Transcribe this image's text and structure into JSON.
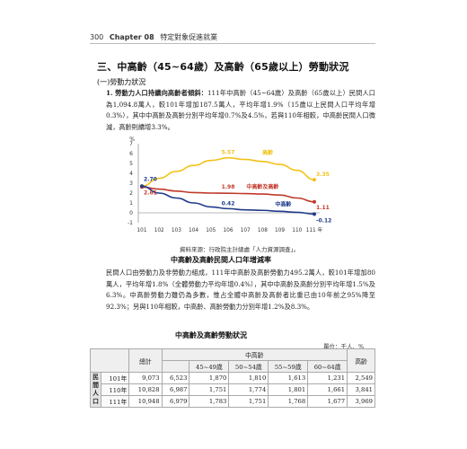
{
  "header": {
    "page_number": "300",
    "chapter": "Chapter 08",
    "chapter_title": "特定對象促進就業"
  },
  "section": {
    "title": "三、中高齡（45~64歲）及高齡（65歲以上）勞動狀況",
    "subsection": "(一)勞動力狀況",
    "item_label": "1. 勞動力人口持續向高齡者傾斜：",
    "item_body": "111年中高齡（45~64歲）及高齡（65歲以上）民間人口為1,094.8萬人，較101年增加187.5萬人，平均年增1.9%（15歲以上民間人口平均年增0.3%），其中中高齡及高齡分別平均年增0.7%及4.5%，若與110年相較，中高齡民間人口微減，高齡則續增3.3%。",
    "paragraph2": "民間人口由勞動力及非勞動力組成，111年中高齡及高齡勞動力495.2萬人，較101年增加80萬人，平均年增1.8%（全體勞動力平均年增0.4%），其中中高齡及高齡分別平均年增1.5%及6.3%。中高齡勞動力雖仍為多數，惟占全體中高齡及高齡者比重已由10年前之95%降至92.3%；另與110年相較，中高齡、高齡勞動力分別年增1.2%及8.3%。"
  },
  "chart_data": {
    "type": "line",
    "ylabel": "%",
    "ylim": [
      -1,
      7
    ],
    "yticks": [
      "-1",
      "0",
      "1",
      "2",
      "3",
      "4",
      "5",
      "6",
      "7"
    ],
    "categories": [
      "101",
      "102",
      "103",
      "104",
      "105",
      "106",
      "107",
      "108",
      "109",
      "110",
      "111 年"
    ],
    "series": [
      {
        "name": "高齡",
        "color": "#f2c21a",
        "values": [
          2.7,
          3.5,
          4.2,
          4.8,
          5.3,
          5.57,
          5.4,
          5.2,
          4.9,
          4.3,
          3.35
        ]
      },
      {
        "name": "中高齡及高齡",
        "color": "#c0392b",
        "values": [
          2.61,
          2.4,
          2.2,
          2.05,
          2.0,
          1.98,
          1.95,
          1.9,
          1.8,
          1.5,
          1.11
        ]
      },
      {
        "name": "中高齡",
        "color": "#1f3a8a",
        "values": [
          2.7,
          2.0,
          1.5,
          1.0,
          0.6,
          0.42,
          0.3,
          0.25,
          0.15,
          0.05,
          -0.12
        ]
      }
    ],
    "data_labels": [
      {
        "text": "2.70",
        "series": 2,
        "index": 0
      },
      {
        "text": "2.61",
        "series": 1,
        "index": 0
      },
      {
        "text": "5.57",
        "series": 0,
        "index": 5
      },
      {
        "text": "3.35",
        "series": 0,
        "index": 10
      },
      {
        "text": "1.98",
        "series": 1,
        "index": 5
      },
      {
        "text": "1.11",
        "series": 1,
        "index": 10
      },
      {
        "text": "0.42",
        "series": 2,
        "index": 5
      },
      {
        "text": "-0.12",
        "series": 2,
        "index": 10
      }
    ],
    "source": "資料來源：行政院主計總處「人力資源調查」。",
    "caption": "中高齡及高齡民間人口年增減率"
  },
  "table": {
    "title": "中高齡及高齡勞動狀況",
    "unit": "單位：千人、%",
    "header_total": "總計",
    "header_midage": "中高齡",
    "header_subtotal": "",
    "header_sub": [
      "45~49歲",
      "50~54歲",
      "55~59歲",
      "60~64歲"
    ],
    "header_elderly": "高齡",
    "side_label": "民間人口",
    "rows": [
      {
        "year": "101年",
        "total": "9,073",
        "mid": "6,523",
        "c1": "1,870",
        "c2": "1,810",
        "c3": "1,613",
        "c4": "1,231",
        "elder": "2,549"
      },
      {
        "year": "110年",
        "total": "10,828",
        "mid": "6,987",
        "c1": "1,751",
        "c2": "1,774",
        "c3": "1,801",
        "c4": "1,661",
        "elder": "3,841"
      },
      {
        "year": "111年",
        "total": "10,948",
        "mid": "6,979",
        "c1": "1,783",
        "c2": "1,751",
        "c3": "1,768",
        "c4": "1,677",
        "elder": "3,969"
      }
    ]
  }
}
